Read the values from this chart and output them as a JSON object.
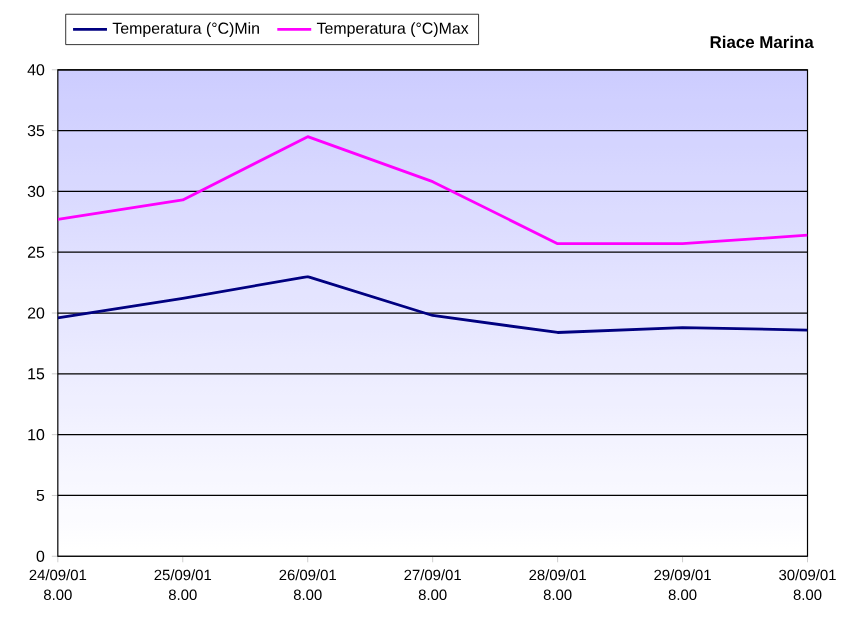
{
  "chart_data": {
    "type": "line",
    "title": "Riace Marina",
    "categories": [
      "24/09/01 8.00",
      "25/09/01 8.00",
      "26/09/01 8.00",
      "27/09/01 8.00",
      "28/09/01 8.00",
      "29/09/01 8.00",
      "30/09/01 8.00"
    ],
    "series": [
      {
        "name": "Temperatura (°C)Min",
        "color": "#000080",
        "values": [
          19.6,
          21.2,
          23.0,
          19.8,
          18.4,
          18.8,
          18.6
        ]
      },
      {
        "name": "Temperatura (°C)Max",
        "color": "#ff00ff",
        "values": [
          27.7,
          29.3,
          34.5,
          30.8,
          25.7,
          25.7,
          26.4
        ]
      }
    ],
    "ylim": [
      0,
      40
    ],
    "yticks": [
      0,
      5,
      10,
      15,
      20,
      25,
      30,
      35,
      40
    ],
    "grid": "y",
    "legend": "top left",
    "marker": "none",
    "line_style": "solid"
  }
}
